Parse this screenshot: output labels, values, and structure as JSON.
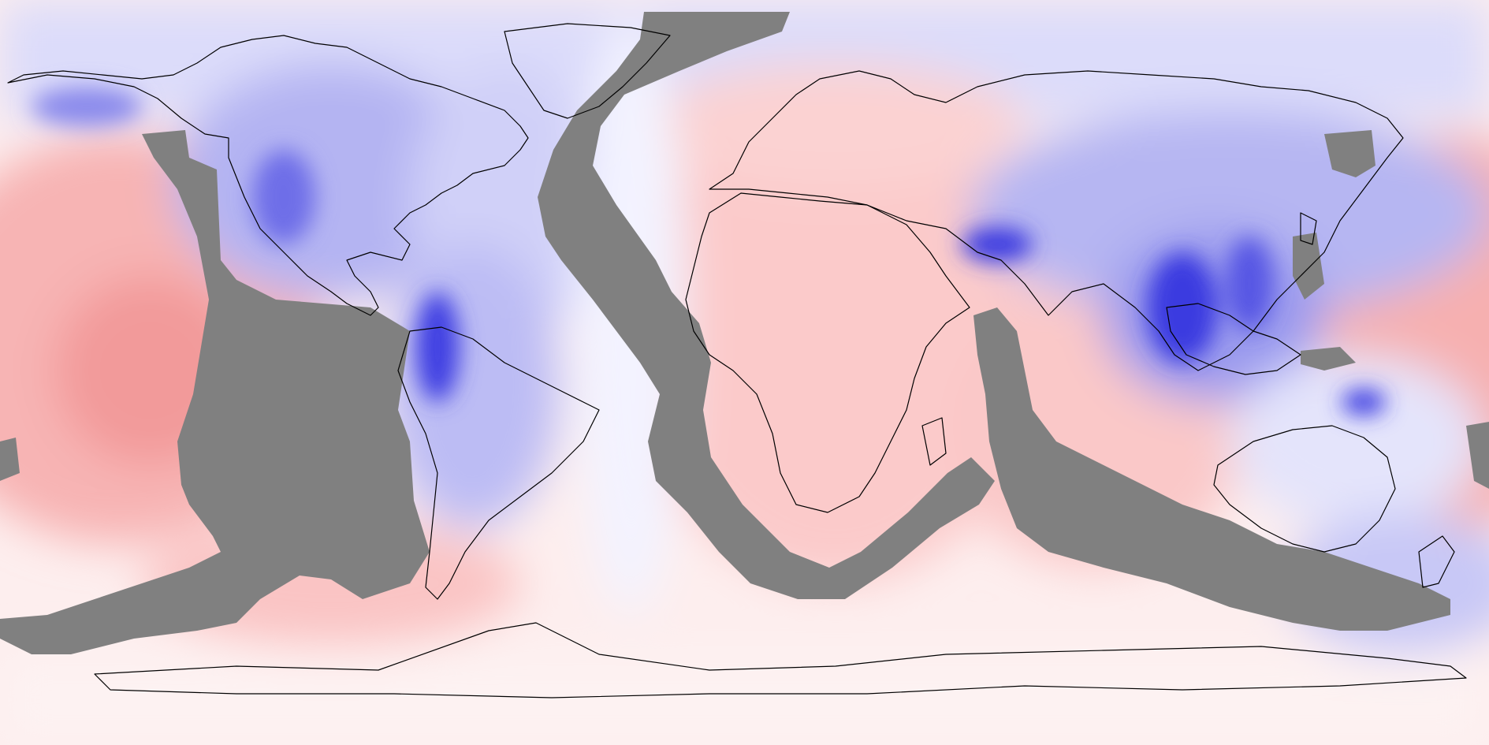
{
  "map": {
    "projection": "equirectangular",
    "extent": "global",
    "mask_color": "#808080",
    "coastline_color": "#000000",
    "diverging_colors": {
      "strong_negative": "#2a2ae6",
      "negative": "#9a9af0",
      "weak_negative": "#d8d8f8",
      "neutral": "#f6f4ff",
      "weak_positive": "#fde6e6",
      "positive": "#fbc8c8",
      "strong_positive": "#f49a9a"
    },
    "regions": [
      "north-america",
      "south-america",
      "greenland",
      "europe",
      "africa",
      "asia",
      "australia",
      "antarctica",
      "indonesia",
      "japan",
      "new-zealand"
    ]
  }
}
